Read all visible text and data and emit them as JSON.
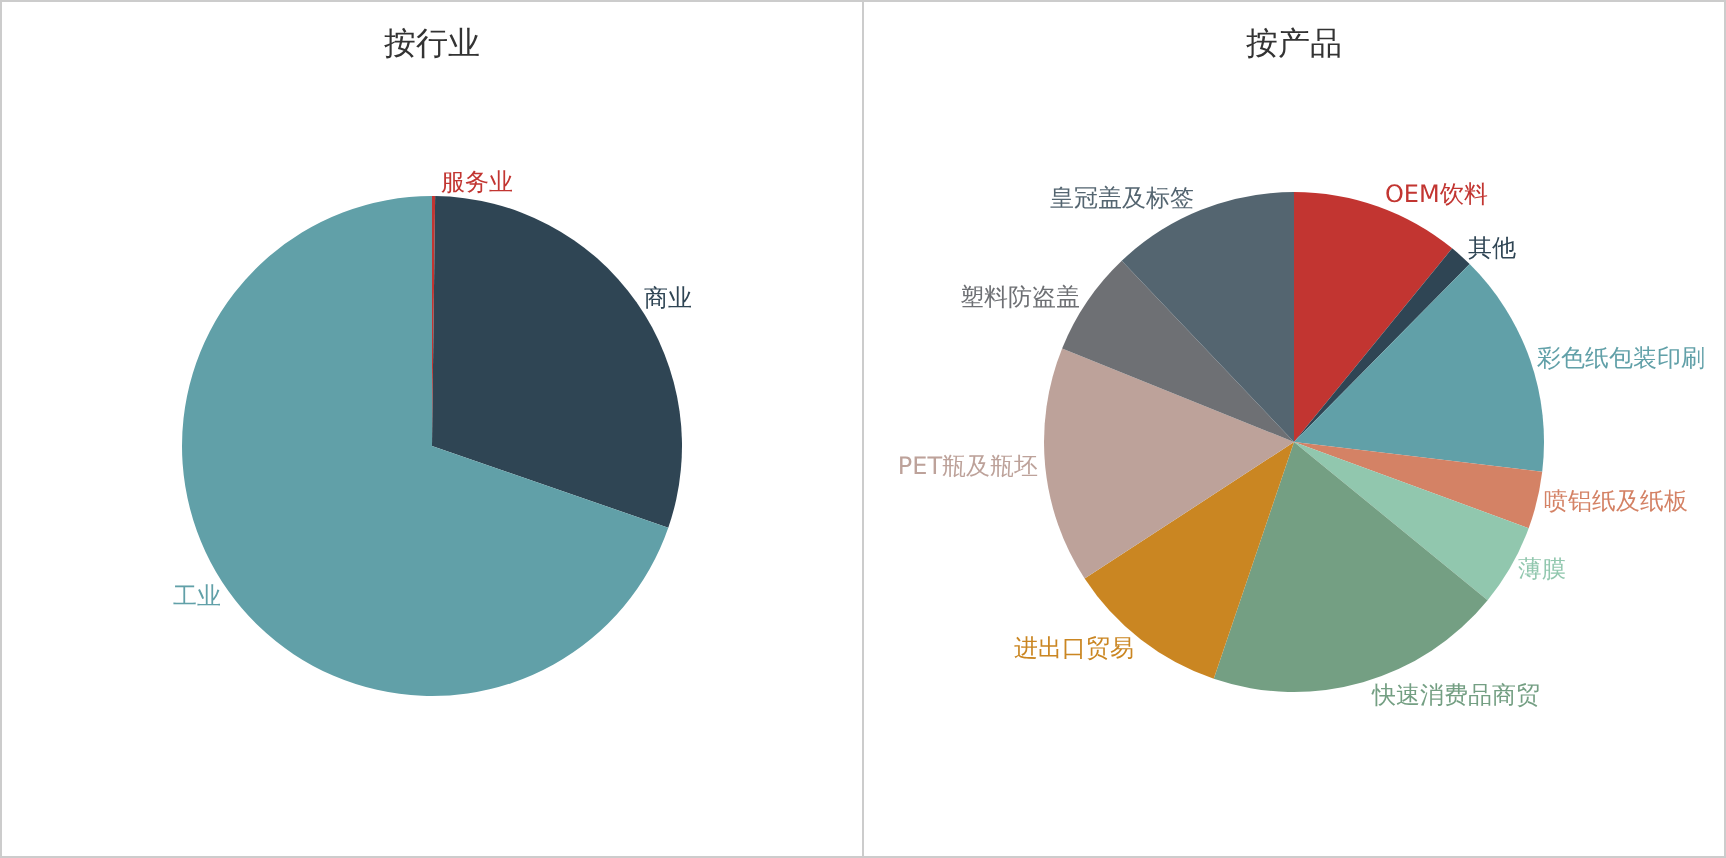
{
  "chart_data": [
    {
      "type": "pie",
      "title": "按行业",
      "categories": [
        "服务业",
        "商业",
        "工业"
      ],
      "values": [
        0.2,
        30.1,
        69.7
      ],
      "colors": [
        "#c23531",
        "#2f4554",
        "#61a0a8"
      ],
      "legend": false
    },
    {
      "type": "pie",
      "title": "按产品",
      "categories": [
        "OEM饮料",
        "其他",
        "彩色纸包装印刷",
        "喷铝纸及纸板",
        "薄膜",
        "快速消费品商贸",
        "进出口贸易",
        "PET瓶及瓶坯",
        "塑料防盗盖",
        "皇冠盖及标签"
      ],
      "values": [
        10.9,
        1.5,
        14.5,
        3.7,
        5.3,
        19.3,
        10.6,
        15.3,
        6.8,
        12.1
      ],
      "colors": [
        "#c23531",
        "#2f4554",
        "#61a0a8",
        "#d48265",
        "#91c7ae",
        "#749f83",
        "#ca8622",
        "#bda29a",
        "#6e7074",
        "#546570"
      ],
      "legend": false
    }
  ]
}
